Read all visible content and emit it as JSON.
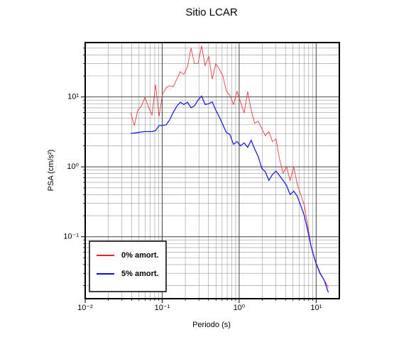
{
  "chart_data": {
    "type": "line",
    "title": "Sitio LCAR",
    "xlabel": "Periodo (s)",
    "ylabel": "PSA (cm/s²)",
    "xscale": "log",
    "yscale": "log",
    "grid": true,
    "legend": "lower left",
    "xlim": [
      0.01,
      20
    ],
    "ylim": [
      0.013,
      60
    ],
    "xticks": [
      {
        "value": 0.01,
        "label": "10⁻²"
      },
      {
        "value": 0.1,
        "label": "10⁻¹"
      },
      {
        "value": 1,
        "label": "10⁰"
      },
      {
        "value": 10,
        "label": "10¹"
      }
    ],
    "yticks": [
      {
        "value": 0.1,
        "label": "10⁻¹"
      },
      {
        "value": 1,
        "label": "10⁰"
      },
      {
        "value": 10,
        "label": "10¹"
      }
    ],
    "xminorticks": [
      0.02,
      0.03,
      0.04,
      0.05,
      0.06,
      0.07,
      0.08,
      0.09,
      0.2,
      0.3,
      0.4,
      0.5,
      0.6,
      0.7,
      0.8,
      0.9,
      2,
      3,
      4,
      5,
      6,
      7,
      8,
      9
    ],
    "yminorticks": [
      0.02,
      0.03,
      0.04,
      0.05,
      0.06,
      0.07,
      0.08,
      0.09,
      0.2,
      0.3,
      0.4,
      0.5,
      0.6,
      0.7,
      0.8,
      0.9,
      2,
      3,
      4,
      5,
      6,
      7,
      8,
      9,
      20,
      30,
      40,
      50
    ],
    "x": [
      0.039,
      0.0435,
      0.0483,
      0.0537,
      0.0597,
      0.0664,
      0.0738,
      0.082,
      0.0912,
      0.101,
      0.113,
      0.125,
      0.139,
      0.155,
      0.172,
      0.191,
      0.213,
      0.237,
      0.263,
      0.292,
      0.325,
      0.361,
      0.402,
      0.447,
      0.497,
      0.552,
      0.614,
      0.683,
      0.759,
      0.844,
      0.938,
      1.04,
      1.16,
      1.29,
      1.43,
      1.59,
      1.77,
      1.97,
      2.19,
      2.43,
      2.71,
      3.01,
      3.34,
      3.72,
      4.13,
      4.59,
      5.11,
      5.68,
      6.31,
      7.02,
      7.8,
      8.67,
      9.86,
      11.2,
      12.7,
      14.4
    ],
    "series": [
      {
        "name": "0% amort.",
        "color": "#e8262b",
        "values": [
          5.9,
          3.9,
          6.5,
          7.4,
          9.9,
          7.2,
          5.5,
          15,
          5.3,
          11,
          13.5,
          14.5,
          14,
          18,
          23,
          21,
          27,
          50,
          30,
          30,
          54,
          28,
          38,
          18,
          30,
          25,
          20,
          12,
          10.6,
          7.8,
          12,
          8.5,
          5.9,
          12,
          6.5,
          4.2,
          4.5,
          3.5,
          2.8,
          3.2,
          2.3,
          2.5,
          1.3,
          0.81,
          1.0,
          0.64,
          1.0,
          0.57,
          0.4,
          0.28,
          0.14,
          0.069,
          0.044,
          0.031,
          0.024,
          0.019
        ]
      },
      {
        "name": "5% amort.",
        "color": "#1010e0",
        "values": [
          3.0,
          3.05,
          3.1,
          3.15,
          3.2,
          3.2,
          3.2,
          3.3,
          3.9,
          3.9,
          4.0,
          4.7,
          6.0,
          7.4,
          8.4,
          7.8,
          8.4,
          7.0,
          7.5,
          9.0,
          10.3,
          7.8,
          8.0,
          8.5,
          6.5,
          5.2,
          4.0,
          3.1,
          2.9,
          2.1,
          2.3,
          2.0,
          2.2,
          1.9,
          2.4,
          1.8,
          1.4,
          0.95,
          0.85,
          0.64,
          0.78,
          0.87,
          0.75,
          0.64,
          0.54,
          0.4,
          0.45,
          0.38,
          0.28,
          0.2,
          0.12,
          0.07,
          0.043,
          0.03,
          0.024,
          0.016
        ]
      }
    ]
  }
}
